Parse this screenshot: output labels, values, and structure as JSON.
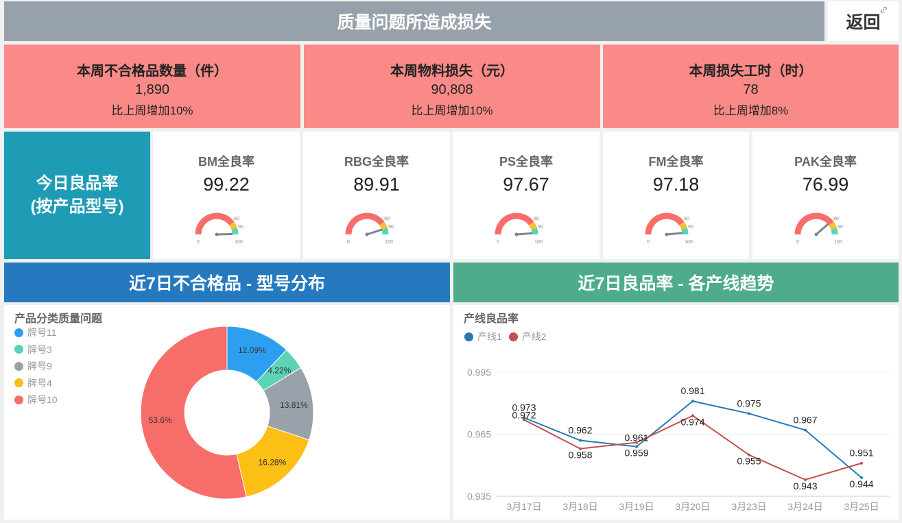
{
  "header": {
    "title": "质量问题所造成损失",
    "back_label": "返回"
  },
  "kpis": [
    {
      "title": "本周不合格品数量（件）",
      "value": "1,890",
      "change": "比上周增加10%"
    },
    {
      "title": "本周物料损失（元）",
      "value": "90,808",
      "change": "比上周增加10%"
    },
    {
      "title": "本周损失工时（时）",
      "value": "78",
      "change": "比上周增加8%"
    }
  ],
  "today": {
    "line1": "今日良品率",
    "line2": "(按产品型号)"
  },
  "gauges": [
    {
      "title": "BM全良率",
      "value": 99.22
    },
    {
      "title": "RBG全良率",
      "value": 89.91
    },
    {
      "title": "PS全良率",
      "value": 97.67
    },
    {
      "title": "FM全良率",
      "value": 97.18
    },
    {
      "title": "PAK全良率",
      "value": 76.99
    }
  ],
  "gauge_ticks": {
    "min": "0",
    "t80": "80",
    "t90": "90",
    "max": "100"
  },
  "colors": {
    "gauge_red": "#f76d6a",
    "gauge_yellow": "#fbbf35",
    "gauge_green": "#5dd3b6",
    "pointer": "#7a8590"
  },
  "section_left": {
    "title": "近7日不合格品 - 型号分布",
    "color": "#2479bf"
  },
  "section_right": {
    "title": "近7日良品率 - 各产线趋势",
    "color": "#4eab8c"
  },
  "chart_data": [
    {
      "type": "pie",
      "title": "产品分类质量问题",
      "legend_position": "top-left",
      "slices": [
        {
          "name": "牌号11",
          "value": 12.09,
          "label": "12.09%",
          "color": "#2d9ff0"
        },
        {
          "name": "牌号3",
          "value": 4.22,
          "label": "4.22%",
          "color": "#5dd3b6"
        },
        {
          "name": "牌号9",
          "value": 13.81,
          "label": "13.81%",
          "color": "#9aa1ab"
        },
        {
          "name": "牌号4",
          "value": 16.28,
          "label": "16.28%",
          "color": "#fbbf15"
        },
        {
          "name": "牌号10",
          "value": 53.6,
          "label": "53.6%",
          "color": "#f76d6a"
        }
      ]
    },
    {
      "type": "line",
      "title": "产线良品率",
      "legend_position": "top-left",
      "categories": [
        "3月17日",
        "3月18日",
        "3月19日",
        "3月20日",
        "3月23日",
        "3月24日",
        "3月25日"
      ],
      "ylim": [
        0.935,
        0.995
      ],
      "yticks": [
        "0.995",
        "0.965",
        "0.935"
      ],
      "grid": true,
      "series": [
        {
          "name": "产线1",
          "color": "#2878b5",
          "values": [
            0.973,
            0.962,
            0.959,
            0.981,
            0.975,
            0.967,
            0.944
          ]
        },
        {
          "name": "产线2",
          "color": "#c0504d",
          "values": [
            0.972,
            0.958,
            0.961,
            0.974,
            0.955,
            0.943,
            0.951
          ]
        }
      ]
    }
  ]
}
